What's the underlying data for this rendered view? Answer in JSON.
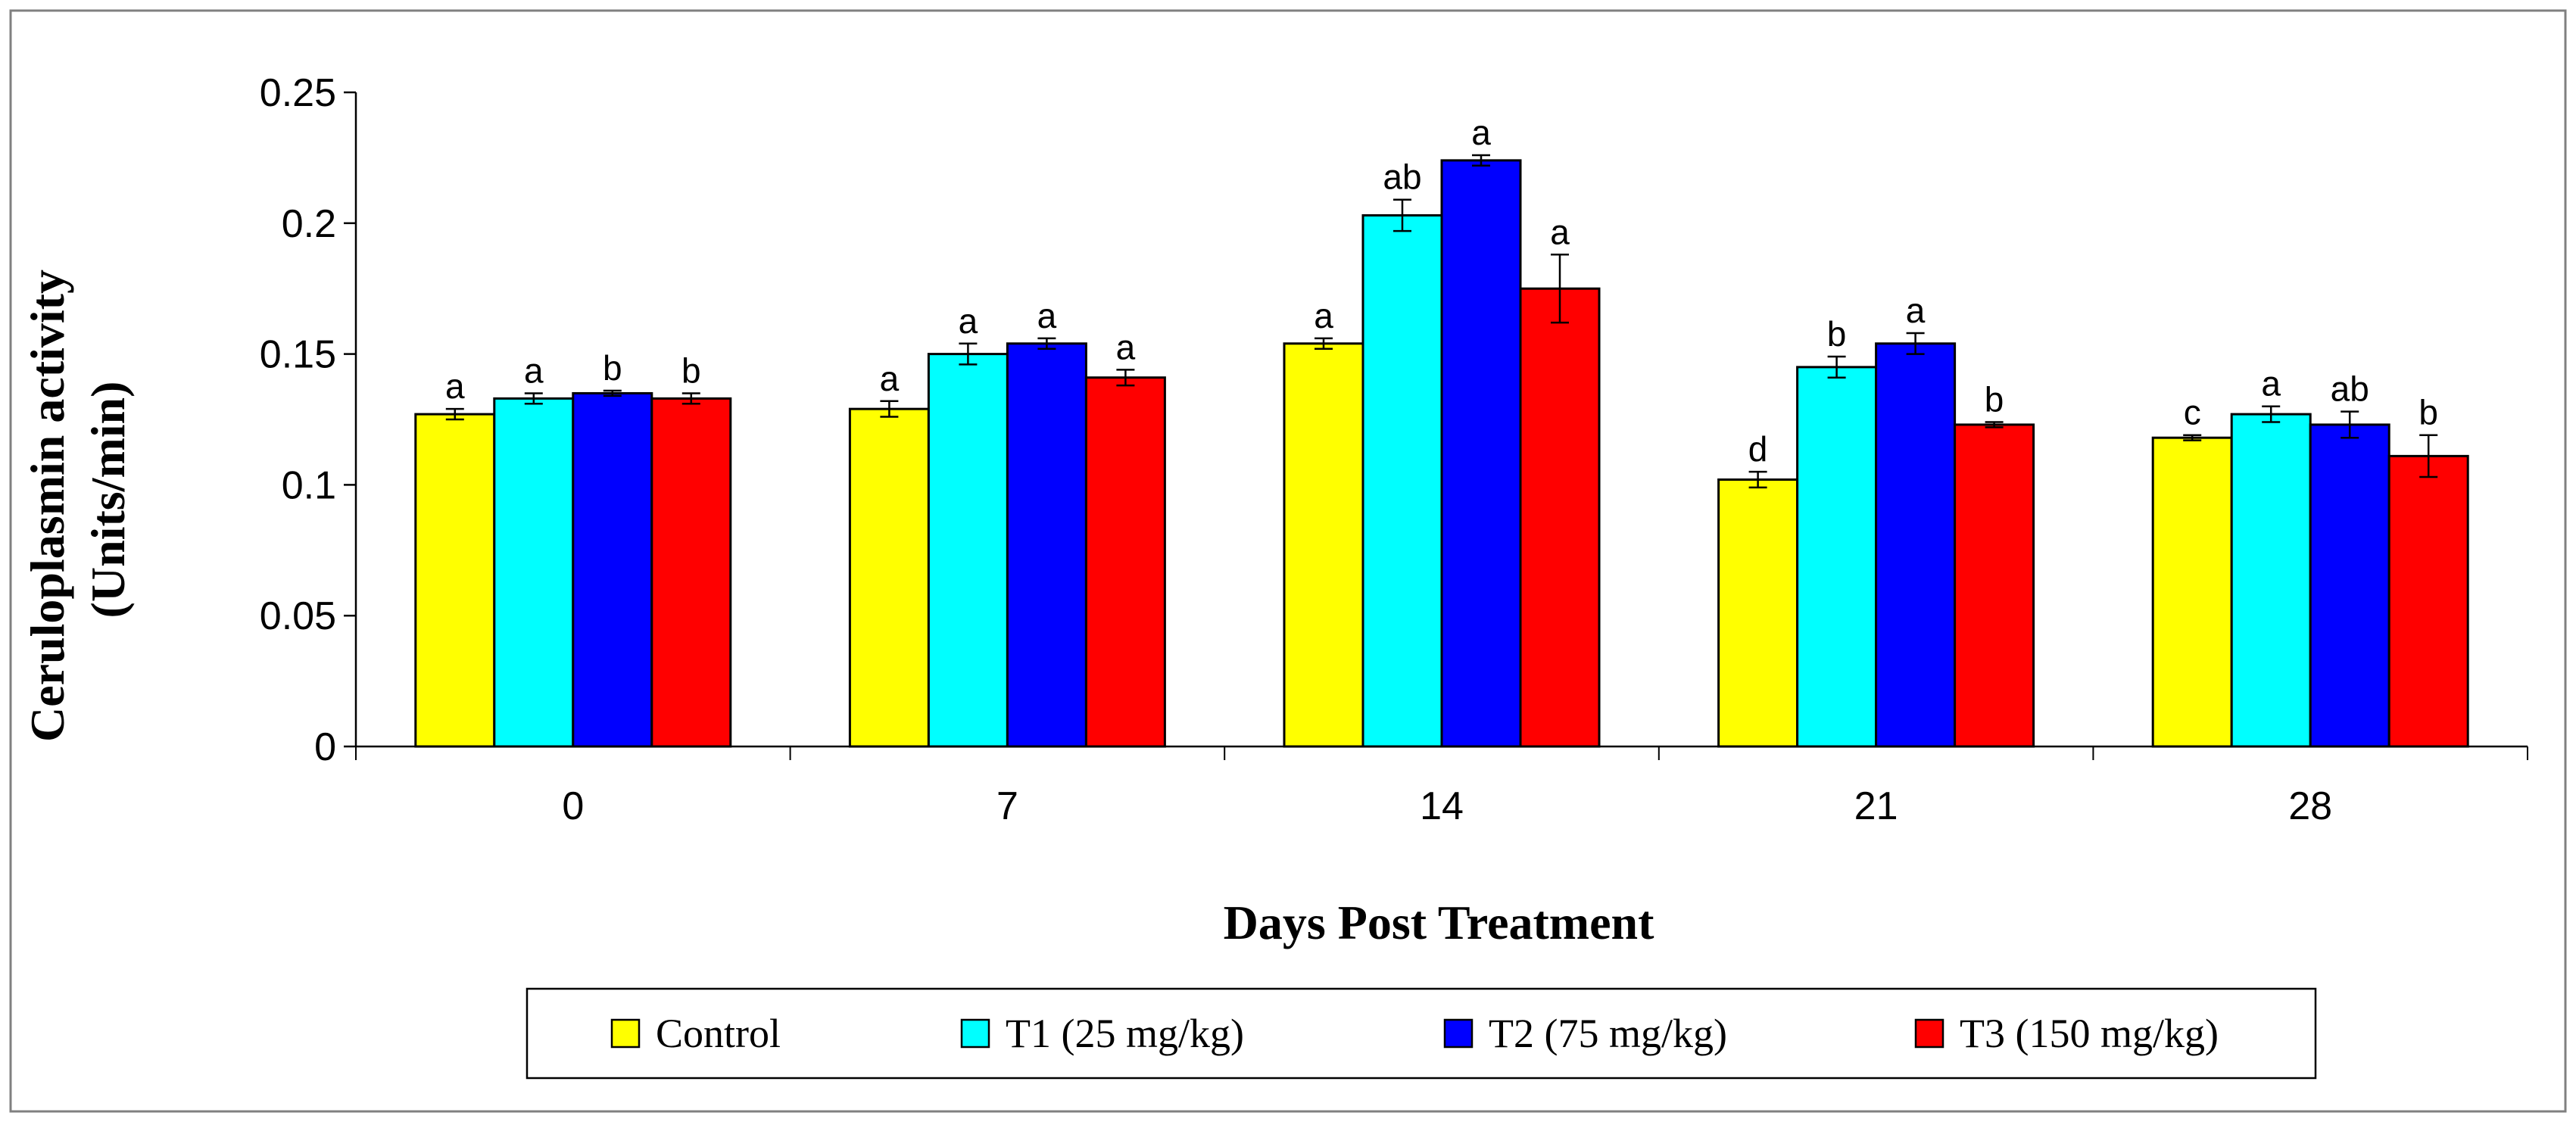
{
  "chart_data": {
    "type": "bar",
    "title": "",
    "xlabel": "Days Post Treatment",
    "ylabel_lines": [
      "Ceruloplasmin activity",
      "(Units/min)"
    ],
    "ylim": [
      0,
      0.25
    ],
    "yticks": [
      "0",
      "0.05",
      "0.1",
      "0.15",
      "0.2",
      "0.25"
    ],
    "ytick_values": [
      0,
      0.05,
      0.1,
      0.15,
      0.2,
      0.25
    ],
    "categories": [
      "0",
      "7",
      "14",
      "21",
      "28"
    ],
    "grid": false,
    "legend_position": "bottom",
    "series": [
      {
        "name": "Control",
        "color": "#ffff00",
        "values": [
          0.127,
          0.129,
          0.154,
          0.102,
          0.118
        ],
        "errors": [
          0.002,
          0.003,
          0.002,
          0.003,
          0.001
        ],
        "letters": [
          "a",
          "a",
          "a",
          "d",
          "c"
        ]
      },
      {
        "name": "T1 (25 mg/kg)",
        "color": "#00ffff",
        "values": [
          0.133,
          0.15,
          0.203,
          0.145,
          0.127
        ],
        "errors": [
          0.002,
          0.004,
          0.006,
          0.004,
          0.003
        ],
        "letters": [
          "a",
          "a",
          "ab",
          "b",
          "a"
        ]
      },
      {
        "name": "T2 (75 mg/kg)",
        "color": "#0000ff",
        "values": [
          0.135,
          0.154,
          0.224,
          0.154,
          0.123
        ],
        "errors": [
          0.001,
          0.002,
          0.002,
          0.004,
          0.005
        ],
        "letters": [
          "b",
          "a",
          "a",
          "a",
          "ab"
        ]
      },
      {
        "name": "T3 (150 mg/kg)",
        "color": "#ff0000",
        "values": [
          0.133,
          0.141,
          0.175,
          0.123,
          0.111
        ],
        "errors": [
          0.002,
          0.003,
          0.013,
          0.001,
          0.008
        ],
        "letters": [
          "b",
          "a",
          "a",
          "b",
          "b"
        ]
      }
    ]
  }
}
